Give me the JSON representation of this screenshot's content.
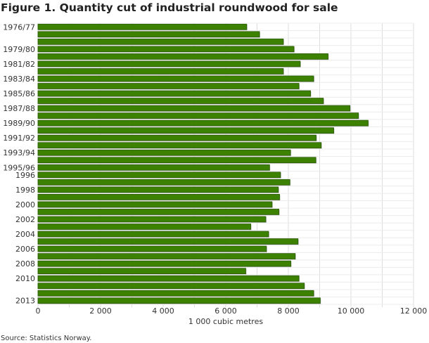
{
  "chart_data": {
    "type": "bar",
    "orientation": "horizontal",
    "title": "Figure 1. Quantity cut of industrial roundwood for sale",
    "xlabel": "1 000 cubic metres",
    "ylabel": "",
    "source": "Source: Statistics Norway.",
    "xlim": [
      0,
      12000
    ],
    "x_ticks": [
      0,
      2000,
      4000,
      6000,
      8000,
      10000,
      12000
    ],
    "x_tick_labels": [
      "0",
      "2 000",
      "4 000",
      "6 000",
      "8 000",
      "10 000",
      "12 000"
    ],
    "grid": true,
    "bar_color": "#3c8200",
    "bar_border": "#2a5a06",
    "categories": [
      "1976/77",
      "",
      "",
      "1979/80",
      "",
      "1981/82",
      "",
      "1983/84",
      "",
      "1985/86",
      "",
      "1987/88",
      "",
      "1989/90",
      "",
      "1991/92",
      "",
      "1993/94",
      "",
      "1995/96",
      "1996",
      "",
      "1998",
      "",
      "2000",
      "",
      "2002",
      "",
      "2004",
      "",
      "2006",
      "",
      "2008",
      "",
      "2010",
      "",
      "",
      "2013"
    ],
    "values": [
      6670,
      7080,
      7840,
      8180,
      9270,
      8380,
      7840,
      8810,
      8340,
      8710,
      9120,
      9970,
      10240,
      10550,
      9450,
      8890,
      9050,
      8070,
      8880,
      7400,
      7750,
      8050,
      7680,
      7720,
      7480,
      7700,
      7280,
      6800,
      7370,
      8310,
      7300,
      8220,
      8080,
      6640,
      8340,
      8510,
      8810,
      9020
    ]
  }
}
